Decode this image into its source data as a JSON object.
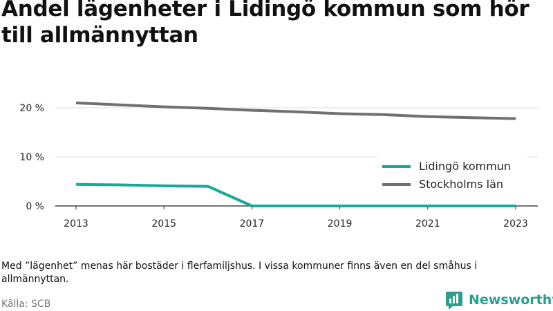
{
  "title": "Andel lägenheter i Lidingö kommun som hör till allmännyttan",
  "note": "Med ”lägenhet” menas här bostäder i flerfamiljshus. I vissa kommuner finns även en del småhus i allmännyttan.",
  "source": "Källa: SCB",
  "brand": {
    "name": "Newsworthy",
    "icon": "bar-chart-logo-icon",
    "color": "#2a9d8f"
  },
  "chart_data": {
    "type": "line",
    "x": [
      2013,
      2014,
      2015,
      2016,
      2017,
      2018,
      2019,
      2020,
      2021,
      2022,
      2023
    ],
    "x_ticks": [
      2013,
      2015,
      2017,
      2019,
      2021,
      2023
    ],
    "y_ticks": [
      0,
      10,
      20
    ],
    "y_tick_labels": [
      "0 %",
      "10 %",
      "20 %"
    ],
    "ylim": [
      0,
      22
    ],
    "grid": true,
    "legend_position": "bottom-right",
    "series": [
      {
        "name": "Lidingö kommun",
        "color": "#16a89a",
        "values": [
          4.4,
          4.3,
          4.1,
          4.0,
          0,
          0,
          0,
          0,
          0,
          0,
          0
        ]
      },
      {
        "name": "Stockholms län",
        "color": "#707070",
        "values": [
          21.0,
          20.6,
          20.2,
          19.9,
          19.5,
          19.2,
          18.8,
          18.6,
          18.2,
          18.0,
          17.8
        ]
      }
    ]
  }
}
